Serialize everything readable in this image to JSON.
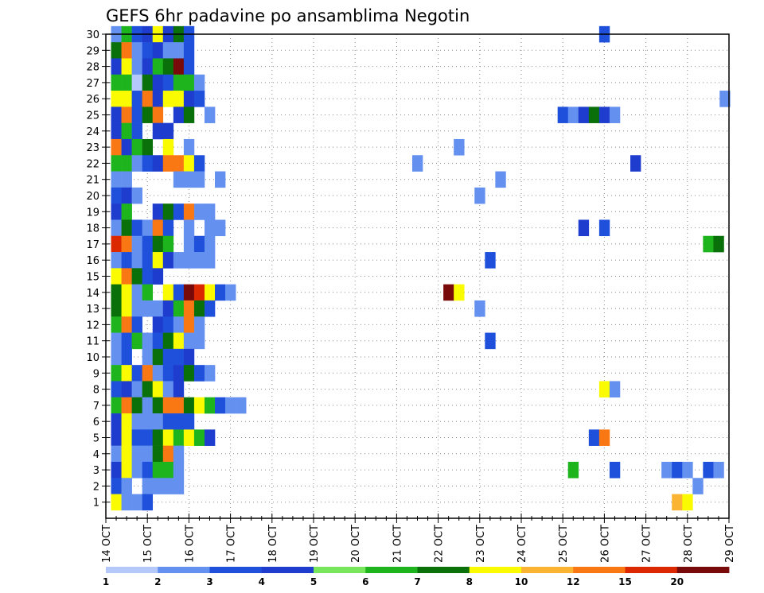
{
  "chart_data": {
    "type": "heatmap",
    "title": "GEFS 6hr padavine po ansamblima Negotin",
    "xlabel": "",
    "ylabel": "",
    "x_ticks": [
      "14 OCT",
      "15 OCT",
      "16 OCT",
      "17 OCT",
      "18 OCT",
      "19 OCT",
      "20 OCT",
      "21 OCT",
      "22 OCT",
      "23 OCT",
      "24 OCT",
      "25 OCT",
      "26 OCT",
      "27 OCT",
      "28 OCT",
      "29 OCT"
    ],
    "y_ticks": [
      1,
      2,
      3,
      4,
      5,
      6,
      7,
      8,
      9,
      10,
      11,
      12,
      13,
      14,
      15,
      16,
      17,
      18,
      19,
      20,
      21,
      22,
      23,
      24,
      25,
      26,
      27,
      28,
      29,
      30
    ],
    "x_range_days": [
      14,
      29
    ],
    "y_range": [
      0,
      30
    ],
    "grid": true,
    "grid_style": "dotted",
    "legend_placement": "bottom",
    "colorbar": {
      "labels": [
        "1",
        "2",
        "3",
        "4",
        "5",
        "6",
        "7",
        "8",
        "10",
        "12",
        "15",
        "20"
      ],
      "colors": [
        "#b4c8fa",
        "#6490f0",
        "#1e50dc",
        "#1e3ccd",
        "#78e65a",
        "#1eb41e",
        "#0a700a",
        "#fafa00",
        "#fab432",
        "#fa7814",
        "#dc2800",
        "#780a0a"
      ]
    },
    "cells": [
      [
        14.25,
        30,
        1
      ],
      [
        14.5,
        30,
        5
      ],
      [
        14.75,
        30,
        2
      ],
      [
        15.0,
        30,
        3
      ],
      [
        15.25,
        30,
        7
      ],
      [
        15.5,
        30,
        3
      ],
      [
        15.75,
        30,
        6
      ],
      [
        16.0,
        30,
        2
      ],
      [
        26.0,
        30,
        2
      ],
      [
        14.25,
        29,
        6
      ],
      [
        14.5,
        29,
        9
      ],
      [
        14.75,
        29,
        1
      ],
      [
        15.0,
        29,
        2
      ],
      [
        15.25,
        29,
        3
      ],
      [
        15.5,
        29,
        1
      ],
      [
        15.75,
        29,
        1
      ],
      [
        16.0,
        29,
        2
      ],
      [
        14.25,
        28,
        3
      ],
      [
        14.5,
        28,
        7
      ],
      [
        14.75,
        28,
        1
      ],
      [
        15.0,
        28,
        3
      ],
      [
        15.25,
        28,
        5
      ],
      [
        15.5,
        28,
        6
      ],
      [
        15.75,
        28,
        11
      ],
      [
        16.0,
        28,
        2
      ],
      [
        14.25,
        27,
        5
      ],
      [
        14.5,
        27,
        5
      ],
      [
        14.75,
        27,
        0
      ],
      [
        15.0,
        27,
        6
      ],
      [
        15.25,
        27,
        3
      ],
      [
        15.5,
        27,
        2
      ],
      [
        15.75,
        27,
        5
      ],
      [
        16.0,
        27,
        5
      ],
      [
        16.25,
        27,
        1
      ],
      [
        14.25,
        26,
        7
      ],
      [
        14.5,
        26,
        7
      ],
      [
        14.75,
        26,
        2
      ],
      [
        15.0,
        26,
        9
      ],
      [
        15.25,
        26,
        3
      ],
      [
        15.5,
        26,
        7
      ],
      [
        15.75,
        26,
        7
      ],
      [
        16.0,
        26,
        3
      ],
      [
        16.25,
        26,
        2
      ],
      [
        28.9,
        26,
        1
      ],
      [
        14.25,
        25,
        3
      ],
      [
        14.5,
        25,
        9
      ],
      [
        14.75,
        25,
        2
      ],
      [
        15.0,
        25,
        6
      ],
      [
        15.25,
        25,
        9
      ],
      [
        15.75,
        25,
        3
      ],
      [
        16.0,
        25,
        6
      ],
      [
        16.5,
        25,
        1
      ],
      [
        25.0,
        25,
        2
      ],
      [
        25.25,
        25,
        1
      ],
      [
        25.5,
        25,
        3
      ],
      [
        25.75,
        25,
        6
      ],
      [
        26.0,
        25,
        3
      ],
      [
        26.25,
        25,
        1
      ],
      [
        14.25,
        24,
        3
      ],
      [
        14.5,
        24,
        5
      ],
      [
        14.75,
        24,
        2
      ],
      [
        15.25,
        24,
        3
      ],
      [
        15.5,
        24,
        3
      ],
      [
        14.25,
        23,
        9
      ],
      [
        14.5,
        23,
        3
      ],
      [
        14.75,
        23,
        5
      ],
      [
        15.0,
        23,
        6
      ],
      [
        15.5,
        23,
        7
      ],
      [
        16.0,
        23,
        1
      ],
      [
        22.5,
        23,
        1
      ],
      [
        14.25,
        22,
        5
      ],
      [
        14.5,
        22,
        5
      ],
      [
        14.75,
        22,
        1
      ],
      [
        15.0,
        22,
        2
      ],
      [
        15.25,
        22,
        3
      ],
      [
        15.5,
        22,
        9
      ],
      [
        15.75,
        22,
        9
      ],
      [
        16.0,
        22,
        7
      ],
      [
        16.25,
        22,
        2
      ],
      [
        21.5,
        22,
        1
      ],
      [
        26.75,
        22,
        3
      ],
      [
        14.25,
        21,
        1
      ],
      [
        14.5,
        21,
        1
      ],
      [
        15.75,
        21,
        1
      ],
      [
        16.0,
        21,
        1
      ],
      [
        16.25,
        21,
        1
      ],
      [
        16.75,
        21,
        1
      ],
      [
        23.5,
        21,
        1
      ],
      [
        14.25,
        20,
        2
      ],
      [
        14.5,
        20,
        3
      ],
      [
        14.75,
        20,
        1
      ],
      [
        23.0,
        20,
        1
      ],
      [
        14.25,
        19,
        3
      ],
      [
        14.5,
        19,
        5
      ],
      [
        15.25,
        19,
        3
      ],
      [
        15.5,
        19,
        6
      ],
      [
        15.75,
        19,
        2
      ],
      [
        16.0,
        19,
        9
      ],
      [
        16.25,
        19,
        1
      ],
      [
        16.5,
        19,
        1
      ],
      [
        14.25,
        18,
        1
      ],
      [
        14.5,
        18,
        6
      ],
      [
        14.75,
        18,
        2
      ],
      [
        15.0,
        18,
        1
      ],
      [
        15.25,
        18,
        9
      ],
      [
        15.5,
        18,
        2
      ],
      [
        16.0,
        18,
        1
      ],
      [
        16.5,
        18,
        1
      ],
      [
        16.75,
        18,
        1
      ],
      [
        25.5,
        18,
        3
      ],
      [
        26.0,
        18,
        2
      ],
      [
        14.25,
        17,
        10
      ],
      [
        14.5,
        17,
        9
      ],
      [
        14.75,
        17,
        1
      ],
      [
        15.0,
        17,
        2
      ],
      [
        15.25,
        17,
        6
      ],
      [
        15.5,
        17,
        5
      ],
      [
        16.0,
        17,
        1
      ],
      [
        16.25,
        17,
        2
      ],
      [
        16.5,
        17,
        1
      ],
      [
        28.5,
        17,
        5
      ],
      [
        28.75,
        17,
        6
      ],
      [
        14.25,
        16,
        1
      ],
      [
        14.5,
        16,
        2
      ],
      [
        14.75,
        16,
        1
      ],
      [
        15.0,
        16,
        2
      ],
      [
        15.25,
        16,
        7
      ],
      [
        15.5,
        16,
        3
      ],
      [
        15.75,
        16,
        1
      ],
      [
        16.0,
        16,
        1
      ],
      [
        16.25,
        16,
        1
      ],
      [
        16.5,
        16,
        1
      ],
      [
        23.25,
        16,
        2
      ],
      [
        14.25,
        15,
        7
      ],
      [
        14.5,
        15,
        9
      ],
      [
        14.75,
        15,
        6
      ],
      [
        15.0,
        15,
        2
      ],
      [
        15.25,
        15,
        3
      ],
      [
        14.25,
        14,
        6
      ],
      [
        14.5,
        14,
        7
      ],
      [
        14.75,
        14,
        1
      ],
      [
        15.0,
        14,
        5
      ],
      [
        15.5,
        14,
        7
      ],
      [
        15.75,
        14,
        2
      ],
      [
        16.0,
        14,
        11
      ],
      [
        16.25,
        14,
        10
      ],
      [
        16.5,
        14,
        7
      ],
      [
        16.75,
        14,
        2
      ],
      [
        17.0,
        14,
        1
      ],
      [
        22.25,
        14,
        11
      ],
      [
        22.5,
        14,
        7
      ],
      [
        14.25,
        13,
        6
      ],
      [
        14.5,
        13,
        7
      ],
      [
        14.75,
        13,
        1
      ],
      [
        15.0,
        13,
        1
      ],
      [
        15.25,
        13,
        1
      ],
      [
        15.5,
        13,
        3
      ],
      [
        15.75,
        13,
        5
      ],
      [
        16.0,
        13,
        9
      ],
      [
        16.25,
        13,
        6
      ],
      [
        16.5,
        13,
        2
      ],
      [
        23.0,
        13,
        1
      ],
      [
        14.25,
        12,
        5
      ],
      [
        14.5,
        12,
        9
      ],
      [
        14.75,
        12,
        2
      ],
      [
        15.25,
        12,
        3
      ],
      [
        15.5,
        12,
        2
      ],
      [
        15.75,
        12,
        1
      ],
      [
        16.0,
        12,
        9
      ],
      [
        16.25,
        12,
        1
      ],
      [
        14.25,
        11,
        1
      ],
      [
        14.5,
        11,
        2
      ],
      [
        14.75,
        11,
        5
      ],
      [
        15.0,
        11,
        1
      ],
      [
        15.25,
        11,
        2
      ],
      [
        15.5,
        11,
        6
      ],
      [
        15.75,
        11,
        7
      ],
      [
        16.0,
        11,
        1
      ],
      [
        16.25,
        11,
        1
      ],
      [
        23.25,
        11,
        2
      ],
      [
        14.25,
        10,
        1
      ],
      [
        14.5,
        10,
        2
      ],
      [
        15.0,
        10,
        1
      ],
      [
        15.25,
        10,
        6
      ],
      [
        15.5,
        10,
        2
      ],
      [
        15.75,
        10,
        2
      ],
      [
        16.0,
        10,
        3
      ],
      [
        14.25,
        9,
        5
      ],
      [
        14.5,
        9,
        7
      ],
      [
        14.75,
        9,
        2
      ],
      [
        15.0,
        9,
        9
      ],
      [
        15.25,
        9,
        1
      ],
      [
        15.5,
        9,
        2
      ],
      [
        15.75,
        9,
        3
      ],
      [
        16.0,
        9,
        6
      ],
      [
        16.25,
        9,
        2
      ],
      [
        16.5,
        9,
        1
      ],
      [
        14.25,
        8,
        2
      ],
      [
        14.5,
        8,
        3
      ],
      [
        14.75,
        8,
        1
      ],
      [
        15.0,
        8,
        6
      ],
      [
        15.25,
        8,
        7
      ],
      [
        15.5,
        8,
        1
      ],
      [
        15.75,
        8,
        3
      ],
      [
        26.0,
        8,
        7
      ],
      [
        26.25,
        8,
        1
      ],
      [
        14.25,
        7,
        5
      ],
      [
        14.5,
        7,
        9
      ],
      [
        14.75,
        7,
        6
      ],
      [
        15.0,
        7,
        1
      ],
      [
        15.25,
        7,
        6
      ],
      [
        15.5,
        7,
        9
      ],
      [
        15.75,
        7,
        9
      ],
      [
        16.0,
        7,
        6
      ],
      [
        16.25,
        7,
        7
      ],
      [
        16.5,
        7,
        5
      ],
      [
        16.75,
        7,
        2
      ],
      [
        17.0,
        7,
        1
      ],
      [
        17.25,
        7,
        1
      ],
      [
        14.25,
        6,
        3
      ],
      [
        14.5,
        6,
        7
      ],
      [
        14.75,
        6,
        1
      ],
      [
        15.0,
        6,
        1
      ],
      [
        15.25,
        6,
        1
      ],
      [
        15.5,
        6,
        2
      ],
      [
        15.75,
        6,
        2
      ],
      [
        16.0,
        6,
        2
      ],
      [
        14.25,
        5,
        3
      ],
      [
        14.5,
        5,
        7
      ],
      [
        14.75,
        5,
        2
      ],
      [
        15.0,
        5,
        2
      ],
      [
        15.25,
        5,
        6
      ],
      [
        15.5,
        5,
        7
      ],
      [
        15.75,
        5,
        5
      ],
      [
        16.0,
        5,
        7
      ],
      [
        16.25,
        5,
        5
      ],
      [
        16.5,
        5,
        3
      ],
      [
        25.75,
        5,
        2
      ],
      [
        26.0,
        5,
        9
      ],
      [
        14.25,
        4,
        1
      ],
      [
        14.5,
        4,
        7
      ],
      [
        14.75,
        4,
        1
      ],
      [
        15.0,
        4,
        1
      ],
      [
        15.25,
        4,
        6
      ],
      [
        15.5,
        4,
        9
      ],
      [
        15.75,
        4,
        1
      ],
      [
        14.25,
        3,
        3
      ],
      [
        14.5,
        3,
        7
      ],
      [
        14.75,
        3,
        1
      ],
      [
        15.0,
        3,
        2
      ],
      [
        15.25,
        3,
        5
      ],
      [
        15.5,
        3,
        5
      ],
      [
        15.75,
        3,
        1
      ],
      [
        25.25,
        3,
        5
      ],
      [
        26.25,
        3,
        2
      ],
      [
        27.5,
        3,
        1
      ],
      [
        27.75,
        3,
        2
      ],
      [
        28.0,
        3,
        1
      ],
      [
        28.5,
        3,
        2
      ],
      [
        28.75,
        3,
        1
      ],
      [
        14.25,
        2,
        2
      ],
      [
        14.5,
        2,
        1
      ],
      [
        15.0,
        2,
        1
      ],
      [
        15.25,
        2,
        1
      ],
      [
        15.5,
        2,
        1
      ],
      [
        15.75,
        2,
        1
      ],
      [
        28.25,
        2,
        1
      ],
      [
        14.25,
        1,
        7
      ],
      [
        14.5,
        1,
        1
      ],
      [
        14.75,
        1,
        1
      ],
      [
        15.0,
        1,
        2
      ],
      [
        27.75,
        1,
        8
      ],
      [
        28.0,
        1,
        7
      ]
    ]
  }
}
